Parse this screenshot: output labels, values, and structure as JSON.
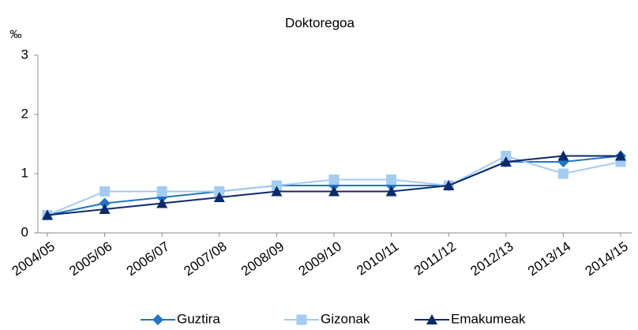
{
  "chart_data": {
    "type": "line",
    "title": "Doktoregoa",
    "y_label": "‰",
    "categories": [
      "2004/05",
      "2005/06",
      "2006/07",
      "2007/08",
      "2008/09",
      "2009/10",
      "2010/11",
      "2011/12",
      "2012/13",
      "2013/14",
      "2014/15"
    ],
    "series": [
      {
        "name": "Guztira",
        "color": "#2274c4",
        "marker": "diamond",
        "values": [
          0.3,
          0.5,
          0.6,
          0.7,
          0.8,
          0.8,
          0.8,
          0.8,
          1.2,
          1.2,
          1.3
        ]
      },
      {
        "name": "Gizonak",
        "color": "#a4cbf0",
        "marker": "square",
        "values": [
          0.3,
          0.7,
          0.7,
          0.7,
          0.8,
          0.9,
          0.9,
          0.8,
          1.3,
          1.0,
          1.2
        ]
      },
      {
        "name": "Emakumeak",
        "color": "#0c2a6b",
        "marker": "triangle",
        "values": [
          0.3,
          0.4,
          0.5,
          0.6,
          0.7,
          0.7,
          0.7,
          0.8,
          1.2,
          1.3,
          1.3
        ]
      }
    ],
    "ylim": [
      0,
      3
    ],
    "yticks": [
      0,
      1,
      2,
      3
    ],
    "grid": false,
    "legend": "bottom"
  }
}
